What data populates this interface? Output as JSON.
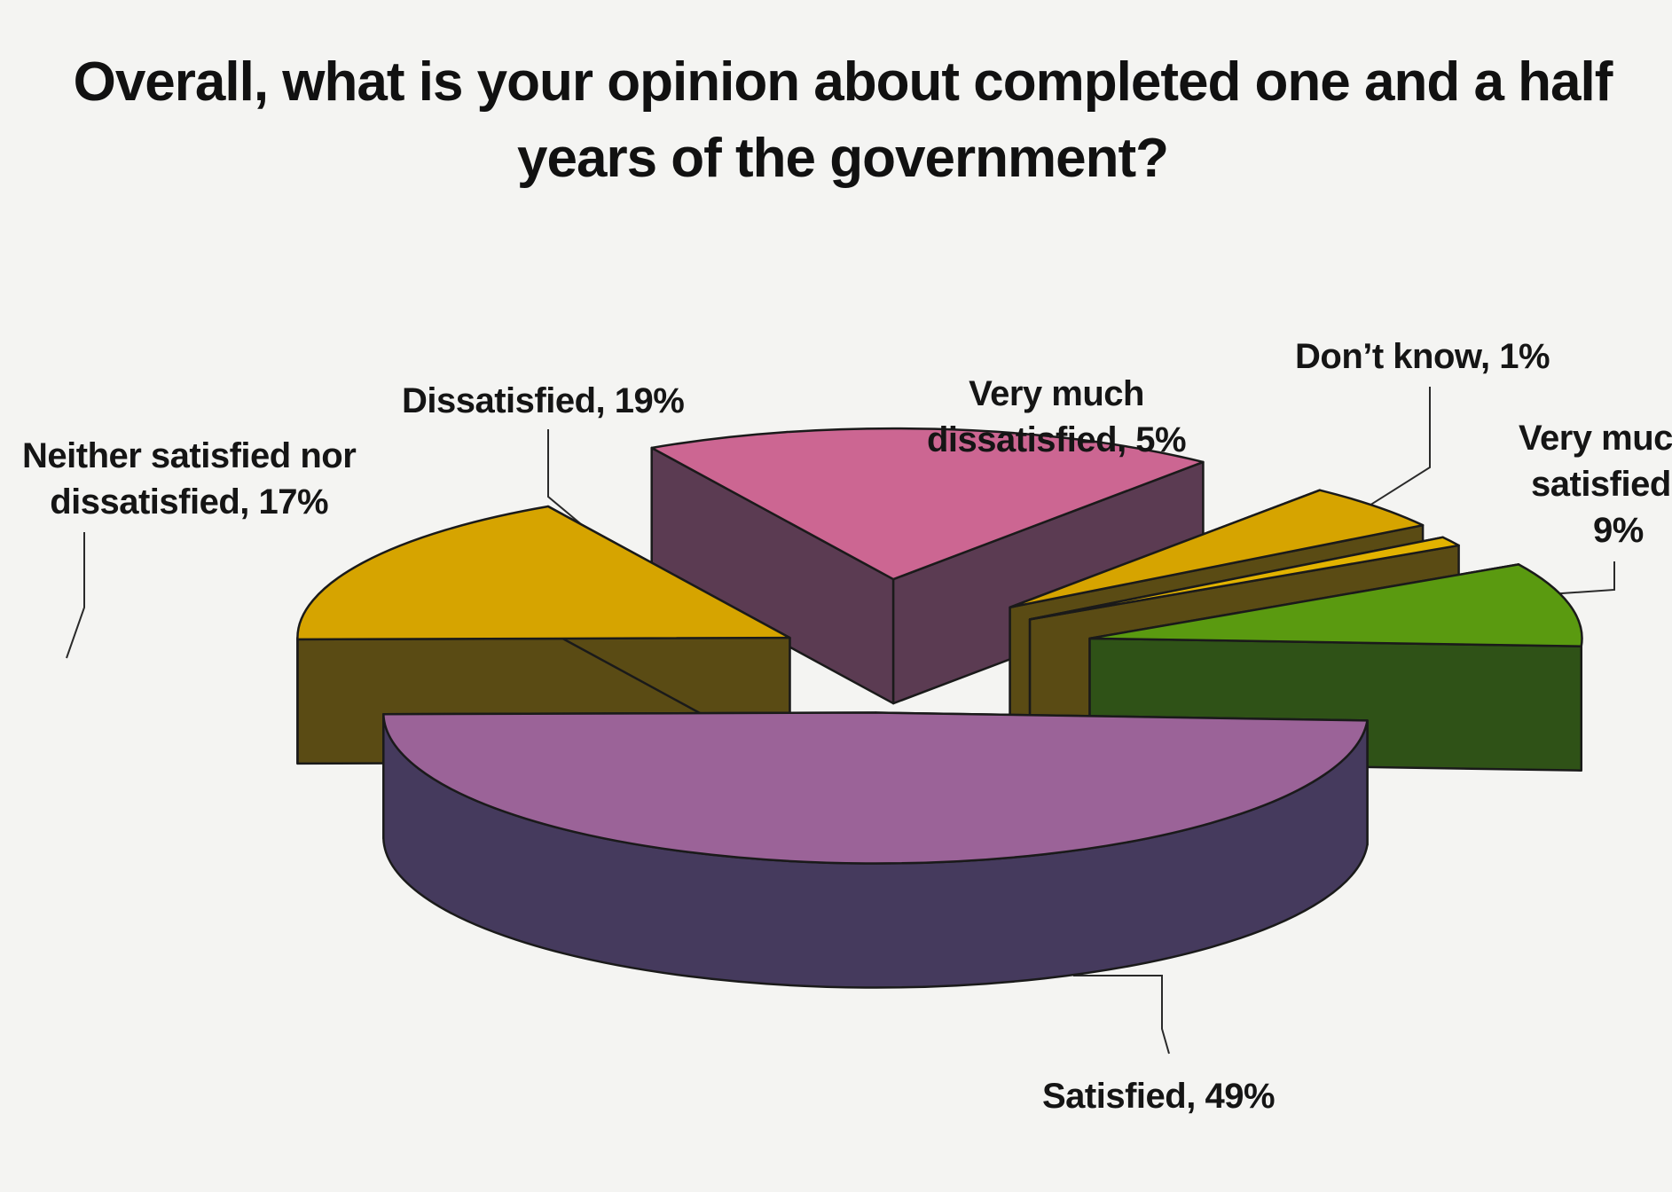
{
  "chart_data": {
    "type": "pie",
    "variant": "3d-exploded",
    "title_lines": [
      "Overall, what is your opinion about completed one and a half",
      "years of the government?"
    ],
    "slices": [
      {
        "name": "Satisfied",
        "value": 49,
        "label_lines": [
          "Satisfied, 49%"
        ],
        "color": "#9b6398",
        "side_color": "#453a5d"
      },
      {
        "name": "Neither satisfied nor dissatisfied",
        "value": 17,
        "label_lines": [
          "Neither satisfied nor",
          "dissatisfied, 17%"
        ],
        "color": "#d6a400",
        "side_color": "#5a4b14"
      },
      {
        "name": "Dissatisfied",
        "value": 19,
        "label_lines": [
          "Dissatisfied, 19%"
        ],
        "color": "#cc6692",
        "side_color": "#5b3b52"
      },
      {
        "name": "Very much dissatisfied",
        "value": 5,
        "label_lines": [
          "Very much",
          "dissatisfied, 5%"
        ],
        "color": "#d6a400",
        "side_color": "#5a4b14"
      },
      {
        "name": "Don't know",
        "value": 1,
        "label_lines": [
          "Don’t know, 1%"
        ],
        "color": "#e2b300",
        "side_color": "#5a4b14"
      },
      {
        "name": "Very much satisfied",
        "value": 9,
        "label_lines": [
          "Very muc",
          "satisfied",
          "9%"
        ],
        "color": "#5a9a10",
        "side_color": "#2f5217"
      }
    ],
    "legend": "none",
    "grid": false
  }
}
